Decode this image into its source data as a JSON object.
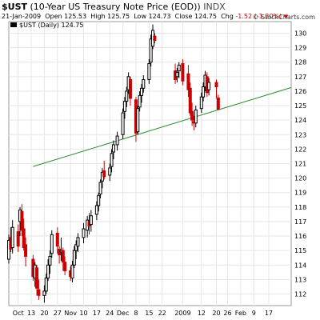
{
  "header": {
    "symbol": "$UST",
    "name": "(10-Year US Treasury Note Price (EOD))",
    "exchange": "INDX",
    "date": "21-Jan-2009",
    "open_label": "Open",
    "open": "125.53",
    "high_label": "High",
    "high": "125.75",
    "low_label": "Low",
    "low": "124.73",
    "close_label": "Close",
    "close": "124.75",
    "chg_label": "Chg",
    "chg": "-1.52 (-1.20%)",
    "watermark": "© StockCharts.com"
  },
  "colors": {
    "up": "#000000",
    "down": "#cc0000",
    "trendline": "#2e8b2e",
    "grid": "#e6e6e6",
    "frame": "#9a9a9a"
  },
  "chart_data": {
    "type": "candlestick",
    "legend": "$UST (Daily) 124.75",
    "ylim": [
      111.2,
      130.8
    ],
    "yticks": [
      112,
      113,
      114,
      115,
      116,
      117,
      118,
      119,
      120,
      121,
      122,
      123,
      124,
      125,
      126,
      127,
      128,
      129,
      130
    ],
    "xlim": [
      "2008-10-01",
      "2009-03-01"
    ],
    "xticks": [
      {
        "date": "2008-10-06",
        "label": "Oct"
      },
      {
        "date": "2008-10-13",
        "label": "13"
      },
      {
        "date": "2008-10-20",
        "label": "20"
      },
      {
        "date": "2008-10-27",
        "label": "27"
      },
      {
        "date": "2008-11-03",
        "label": "Nov"
      },
      {
        "date": "2008-11-10",
        "label": "10"
      },
      {
        "date": "2008-11-17",
        "label": "17"
      },
      {
        "date": "2008-11-24",
        "label": "24"
      },
      {
        "date": "2008-12-01",
        "label": "Dec"
      },
      {
        "date": "2008-12-08",
        "label": "8"
      },
      {
        "date": "2008-12-15",
        "label": "15"
      },
      {
        "date": "2008-12-22",
        "label": "22"
      },
      {
        "date": "2009-01-02",
        "label": "2009"
      },
      {
        "date": "2009-01-12",
        "label": "12"
      },
      {
        "date": "2009-01-20",
        "label": "20"
      },
      {
        "date": "2009-01-26",
        "label": "26"
      },
      {
        "date": "2009-02-02",
        "label": "Feb"
      },
      {
        "date": "2009-02-09",
        "label": "9"
      },
      {
        "date": "2009-02-17",
        "label": "17"
      }
    ],
    "candles": [
      {
        "date": "2008-10-01",
        "open": 114.4,
        "high": 116.1,
        "low": 114.1,
        "close": 115.7
      },
      {
        "date": "2008-10-02",
        "open": 115.9,
        "high": 116.6,
        "low": 114.9,
        "close": 115.1
      },
      {
        "date": "2008-10-03",
        "open": 115.2,
        "high": 117.1,
        "low": 114.8,
        "close": 116.6
      },
      {
        "date": "2008-10-06",
        "open": 116.3,
        "high": 116.8,
        "low": 114.9,
        "close": 115.3
      },
      {
        "date": "2008-10-07",
        "open": 117.0,
        "high": 118.0,
        "low": 116.0,
        "close": 117.8
      },
      {
        "date": "2008-10-08",
        "open": 117.7,
        "high": 118.2,
        "low": 116.0,
        "close": 116.4
      },
      {
        "date": "2008-10-09",
        "open": 116.5,
        "high": 117.2,
        "low": 115.0,
        "close": 115.2
      },
      {
        "date": "2008-10-10",
        "open": 115.4,
        "high": 115.9,
        "low": 113.9,
        "close": 114.6
      },
      {
        "date": "2008-10-14",
        "open": 114.4,
        "high": 114.7,
        "low": 112.9,
        "close": 113.2
      },
      {
        "date": "2008-10-15",
        "open": 113.1,
        "high": 114.2,
        "low": 112.5,
        "close": 114.0
      },
      {
        "date": "2008-10-16",
        "open": 113.8,
        "high": 114.0,
        "low": 111.9,
        "close": 112.4
      },
      {
        "date": "2008-10-17",
        "open": 112.3,
        "high": 113.0,
        "low": 111.6,
        "close": 111.9
      },
      {
        "date": "2008-10-20",
        "open": 111.9,
        "high": 112.6,
        "low": 111.4,
        "close": 112.2
      },
      {
        "date": "2008-10-21",
        "open": 112.2,
        "high": 113.4,
        "low": 112.0,
        "close": 113.1
      },
      {
        "date": "2008-10-22",
        "open": 113.1,
        "high": 114.4,
        "low": 112.9,
        "close": 114.0
      },
      {
        "date": "2008-10-23",
        "open": 114.0,
        "high": 115.0,
        "low": 113.4,
        "close": 114.6
      },
      {
        "date": "2008-10-24",
        "open": 114.8,
        "high": 116.4,
        "low": 114.5,
        "close": 116.1
      },
      {
        "date": "2008-10-27",
        "open": 116.2,
        "high": 116.6,
        "low": 114.8,
        "close": 115.3
      },
      {
        "date": "2008-10-28",
        "open": 115.1,
        "high": 115.3,
        "low": 114.1,
        "close": 114.7
      },
      {
        "date": "2008-10-29",
        "open": 114.9,
        "high": 115.9,
        "low": 114.3,
        "close": 115.0
      },
      {
        "date": "2008-10-30",
        "open": 115.0,
        "high": 115.2,
        "low": 113.6,
        "close": 114.2
      },
      {
        "date": "2008-10-31",
        "open": 114.2,
        "high": 114.6,
        "low": 113.3,
        "close": 113.6
      },
      {
        "date": "2008-11-03",
        "open": 113.6,
        "high": 113.9,
        "low": 112.9,
        "close": 113.2
      },
      {
        "date": "2008-11-04",
        "open": 113.1,
        "high": 114.3,
        "low": 112.8,
        "close": 114.0
      },
      {
        "date": "2008-11-05",
        "open": 114.0,
        "high": 115.3,
        "low": 113.8,
        "close": 115.0
      },
      {
        "date": "2008-11-06",
        "open": 115.0,
        "high": 115.7,
        "low": 114.4,
        "close": 115.4
      },
      {
        "date": "2008-11-07",
        "open": 115.3,
        "high": 116.2,
        "low": 114.9,
        "close": 115.9
      },
      {
        "date": "2008-11-10",
        "open": 115.9,
        "high": 116.9,
        "low": 115.5,
        "close": 116.5
      },
      {
        "date": "2008-11-12",
        "open": 116.4,
        "high": 117.4,
        "low": 115.9,
        "close": 117.1
      },
      {
        "date": "2008-11-13",
        "open": 117.0,
        "high": 117.6,
        "low": 116.1,
        "close": 116.7
      },
      {
        "date": "2008-11-14",
        "open": 116.8,
        "high": 117.8,
        "low": 116.3,
        "close": 117.4
      },
      {
        "date": "2008-11-17",
        "open": 117.5,
        "high": 118.4,
        "low": 117.1,
        "close": 118.1
      },
      {
        "date": "2008-11-18",
        "open": 118.1,
        "high": 119.0,
        "low": 117.7,
        "close": 118.8
      },
      {
        "date": "2008-11-19",
        "open": 118.9,
        "high": 119.9,
        "low": 118.6,
        "close": 119.7
      },
      {
        "date": "2008-11-20",
        "open": 119.8,
        "high": 120.7,
        "low": 119.3,
        "close": 120.4
      },
      {
        "date": "2008-11-21",
        "open": 120.5,
        "high": 121.2,
        "low": 119.9,
        "close": 120.1
      },
      {
        "date": "2008-11-24",
        "open": 120.2,
        "high": 121.0,
        "low": 119.8,
        "close": 120.7
      },
      {
        "date": "2008-11-25",
        "open": 120.8,
        "high": 122.0,
        "low": 120.4,
        "close": 121.7
      },
      {
        "date": "2008-11-26",
        "open": 121.8,
        "high": 122.6,
        "low": 121.3,
        "close": 122.3
      },
      {
        "date": "2008-11-28",
        "open": 122.3,
        "high": 123.2,
        "low": 121.9,
        "close": 122.9
      },
      {
        "date": "2008-12-01",
        "open": 123.0,
        "high": 124.8,
        "low": 122.7,
        "close": 124.5
      },
      {
        "date": "2008-12-02",
        "open": 124.6,
        "high": 125.6,
        "low": 124.1,
        "close": 125.3
      },
      {
        "date": "2008-12-03",
        "open": 125.3,
        "high": 126.3,
        "low": 124.9,
        "close": 126.0
      },
      {
        "date": "2008-12-04",
        "open": 126.1,
        "high": 127.3,
        "low": 125.8,
        "close": 127.0
      },
      {
        "date": "2008-12-05",
        "open": 126.8,
        "high": 127.0,
        "low": 125.0,
        "close": 125.5
      },
      {
        "date": "2008-12-08",
        "open": 125.4,
        "high": 125.6,
        "low": 122.5,
        "close": 123.1
      },
      {
        "date": "2008-12-09",
        "open": 123.2,
        "high": 125.0,
        "low": 123.0,
        "close": 124.8
      },
      {
        "date": "2008-12-10",
        "open": 124.9,
        "high": 126.0,
        "low": 124.6,
        "close": 125.7
      },
      {
        "date": "2008-12-11",
        "open": 125.7,
        "high": 126.5,
        "low": 125.2,
        "close": 126.2
      },
      {
        "date": "2008-12-12",
        "open": 126.2,
        "high": 127.1,
        "low": 125.9,
        "close": 126.8
      },
      {
        "date": "2008-12-15",
        "open": 126.8,
        "high": 128.2,
        "low": 126.5,
        "close": 127.9
      },
      {
        "date": "2008-12-16",
        "open": 128.0,
        "high": 129.9,
        "low": 127.7,
        "close": 129.6
      },
      {
        "date": "2008-12-17",
        "open": 129.1,
        "high": 130.6,
        "low": 128.9,
        "close": 130.2
      },
      {
        "date": "2008-12-18",
        "open": 129.8,
        "high": 130.0,
        "low": 129.3,
        "close": 129.5
      },
      {
        "date": "2008-12-29",
        "open": 127.4,
        "high": 127.9,
        "low": 126.5,
        "close": 126.8
      },
      {
        "date": "2008-12-30",
        "open": 127.0,
        "high": 127.6,
        "low": 126.6,
        "close": 127.3
      },
      {
        "date": "2008-12-31",
        "open": 127.4,
        "high": 128.0,
        "low": 126.9,
        "close": 127.8
      },
      {
        "date": "2009-01-02",
        "open": 127.9,
        "high": 128.2,
        "low": 126.4,
        "close": 126.7
      },
      {
        "date": "2009-01-05",
        "open": 127.2,
        "high": 127.8,
        "low": 125.6,
        "close": 126.1
      },
      {
        "date": "2009-01-06",
        "open": 126.2,
        "high": 126.6,
        "low": 124.3,
        "close": 124.5
      },
      {
        "date": "2009-01-07",
        "open": 124.6,
        "high": 125.2,
        "low": 123.6,
        "close": 124.0
      },
      {
        "date": "2009-01-08",
        "open": 123.9,
        "high": 124.3,
        "low": 123.3,
        "close": 123.8
      },
      {
        "date": "2009-01-09",
        "open": 123.8,
        "high": 125.0,
        "low": 123.5,
        "close": 124.7
      },
      {
        "date": "2009-01-12",
        "open": 124.8,
        "high": 125.9,
        "low": 124.5,
        "close": 125.6
      },
      {
        "date": "2009-01-13",
        "open": 125.6,
        "high": 126.6,
        "low": 125.3,
        "close": 126.3
      },
      {
        "date": "2009-01-14",
        "open": 126.3,
        "high": 127.4,
        "low": 126.0,
        "close": 127.1
      },
      {
        "date": "2009-01-15",
        "open": 127.0,
        "high": 127.3,
        "low": 125.6,
        "close": 125.9
      },
      {
        "date": "2009-01-16",
        "open": 126.1,
        "high": 126.9,
        "low": 125.7,
        "close": 126.6
      },
      {
        "date": "2009-01-20",
        "open": 126.6,
        "high": 126.8,
        "low": 125.5,
        "close": 126.3
      },
      {
        "date": "2009-01-21",
        "open": 125.53,
        "high": 125.75,
        "low": 124.73,
        "close": 124.75
      }
    ],
    "trendline": [
      {
        "date": "2008-10-14",
        "value": 120.8
      },
      {
        "date": "2009-03-01",
        "value": 126.25
      }
    ]
  }
}
